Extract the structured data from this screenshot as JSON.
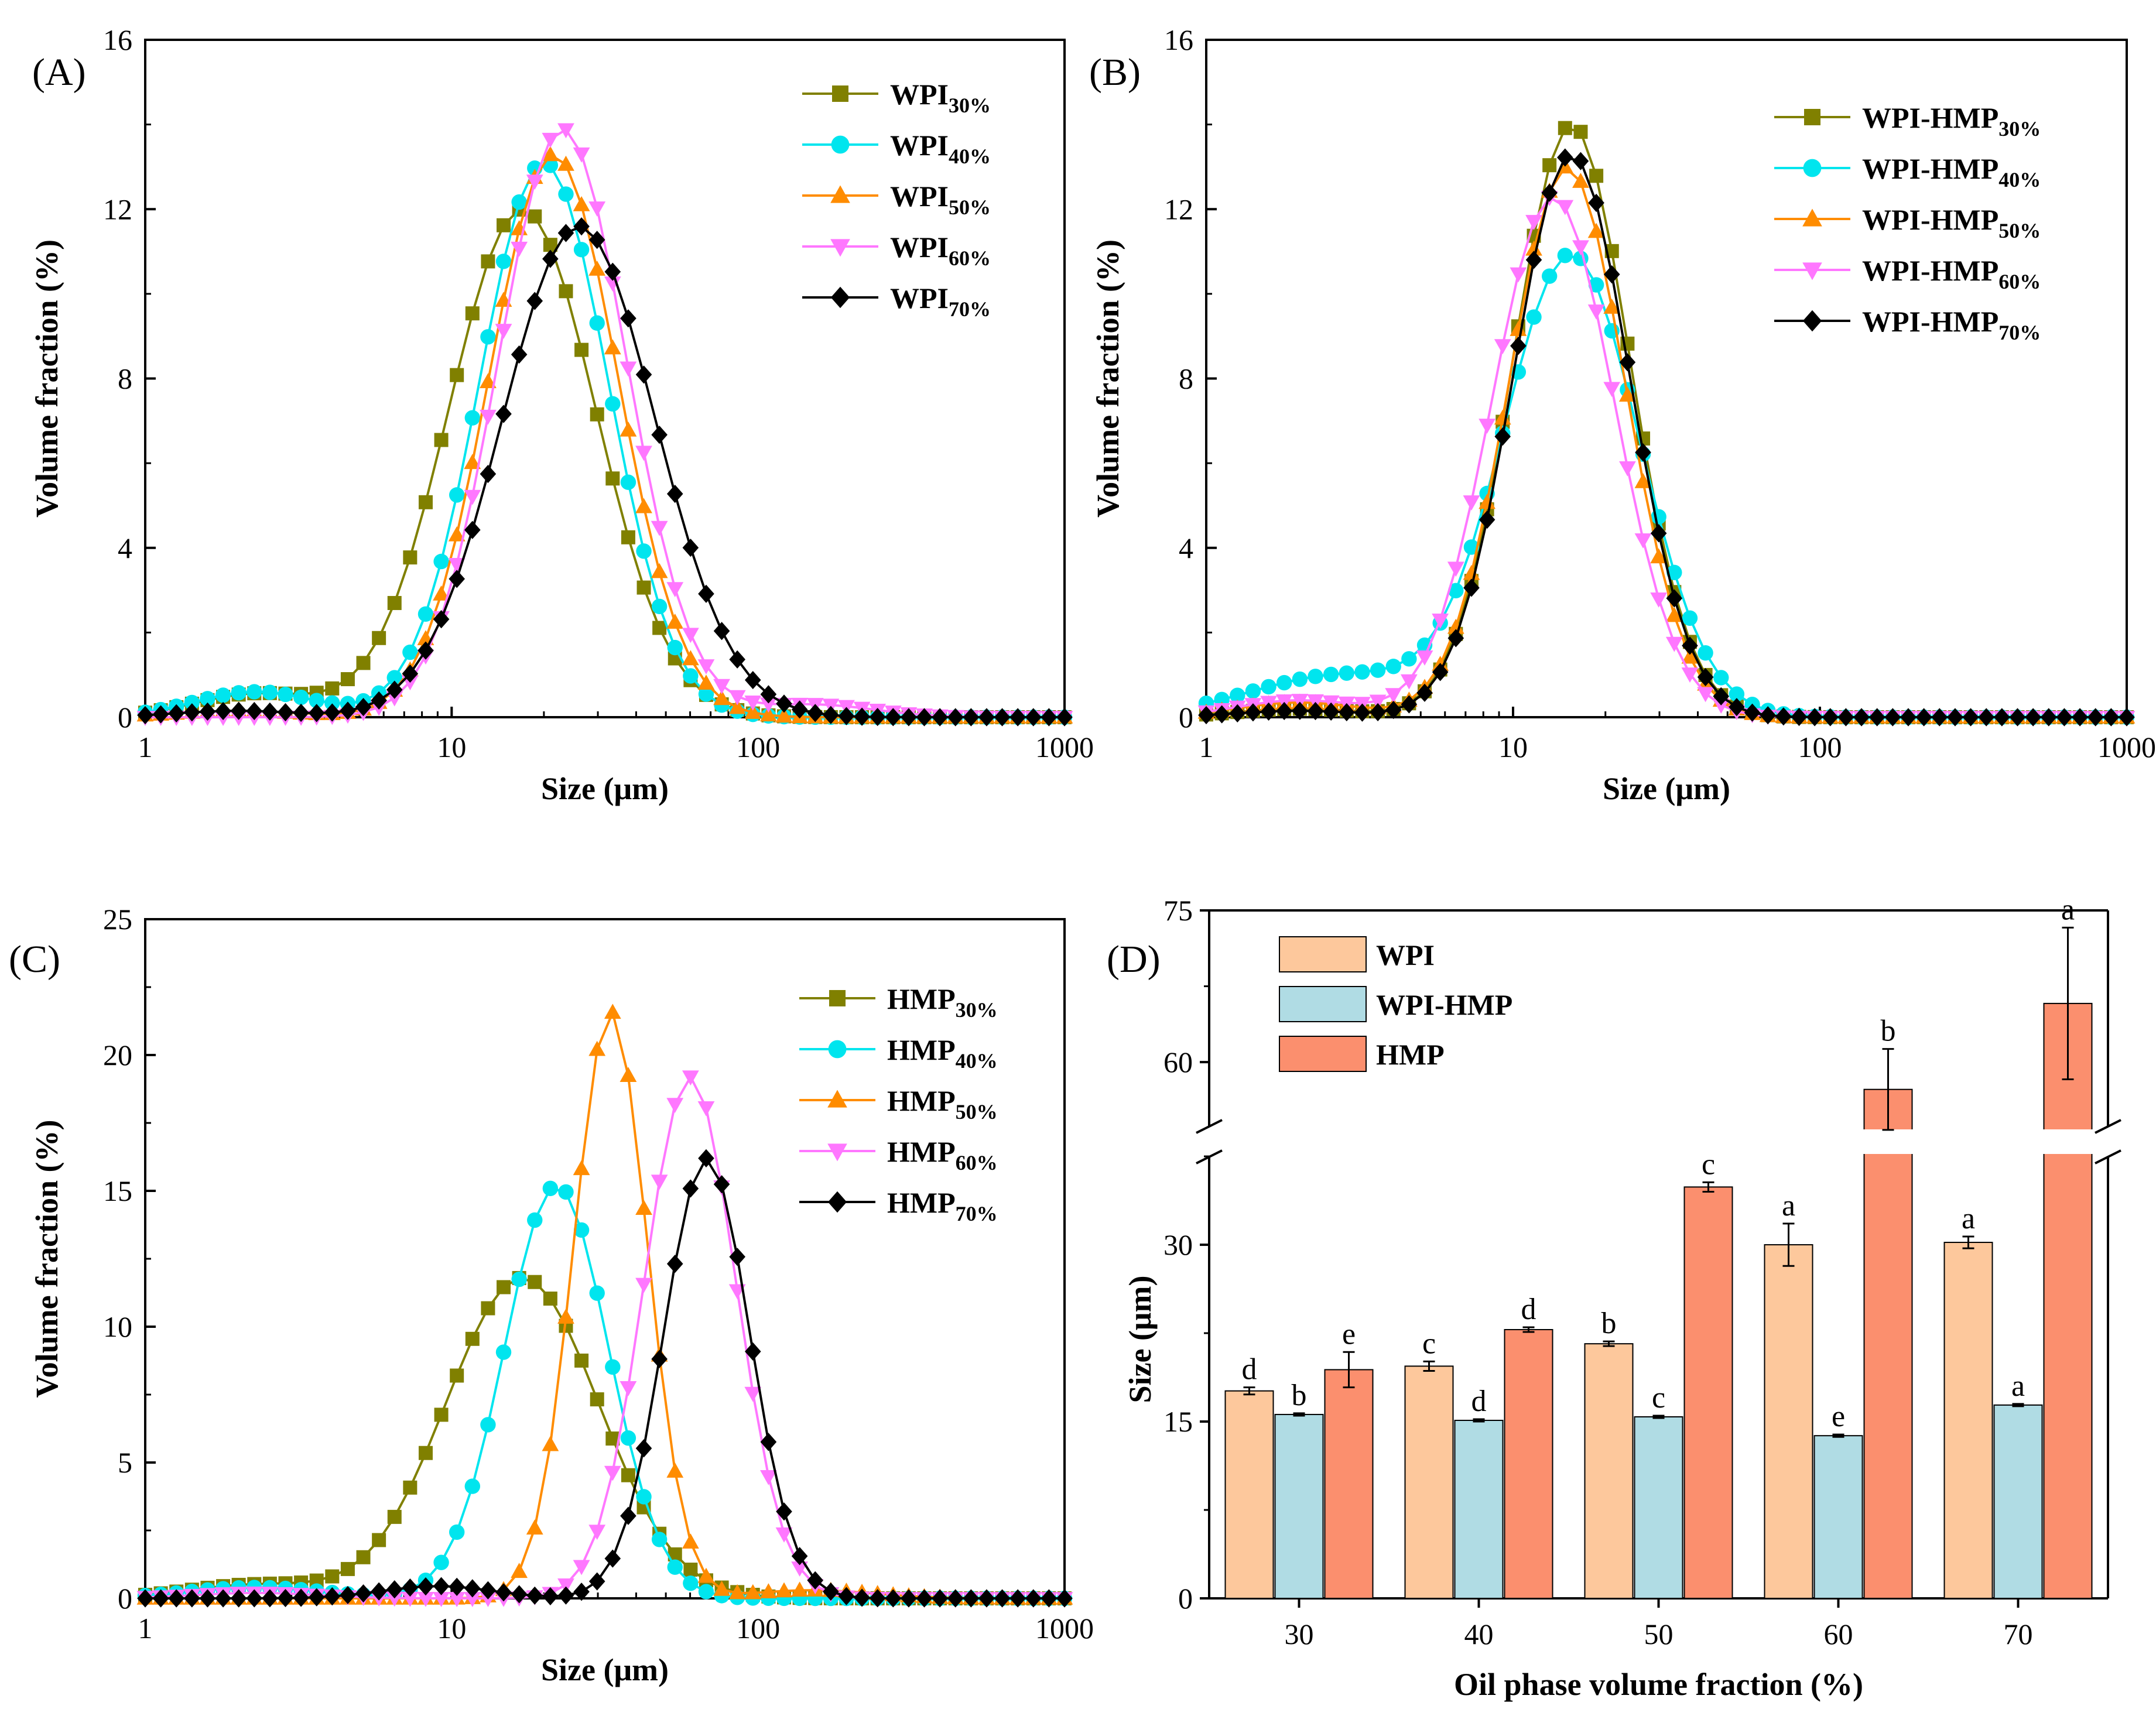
{
  "figure": {
    "panels": [
      "(A)",
      "(B)",
      "(C)",
      "(D)"
    ]
  },
  "chart_data": [
    {
      "type": "line",
      "panel": "(A)",
      "xlabel": "Size (μm)",
      "ylabel": "Volume fraction (%)",
      "xscale": "log",
      "xlim": [
        1,
        1000
      ],
      "ylim": [
        0,
        16
      ],
      "xticks": [
        "1",
        "10",
        "100",
        "1000"
      ],
      "yticks": [
        "0",
        "4",
        "8",
        "12",
        "16"
      ],
      "legend_position": "top-right",
      "series": [
        {
          "name": "WPI",
          "sub": "30%",
          "color": "#808000",
          "marker": "square",
          "center": 17.0,
          "width": 0.24,
          "peak": 12.0,
          "bump_center": 2.3,
          "bump_width": 0.2,
          "bump_peak": 0.55
        },
        {
          "name": "WPI",
          "sub": "40%",
          "color": "#00E5EE",
          "marker": "circle",
          "center": 20.0,
          "width": 0.21,
          "peak": 13.1,
          "bump_center": 2.3,
          "bump_width": 0.2,
          "bump_peak": 0.6
        },
        {
          "name": "WPI",
          "sub": "50%",
          "color": "#FF8C00",
          "marker": "triangle-up",
          "center": 21.5,
          "width": 0.21,
          "peak": 13.3,
          "bump_center": 2.0,
          "bump_width": 0.2,
          "bump_peak": 0.15
        },
        {
          "name": "WPI",
          "sub": "60%",
          "color": "#FF77FF",
          "marker": "triangle-down",
          "center": 23.0,
          "width": 0.21,
          "peak": 13.9,
          "bump_center": 150.0,
          "bump_width": 0.2,
          "bump_peak": 0.3
        },
        {
          "name": "WPI",
          "sub": "70%",
          "color": "#000000",
          "marker": "diamond",
          "center": 26.0,
          "width": 0.25,
          "peak": 11.6,
          "bump_center": 2.0,
          "bump_width": 0.2,
          "bump_peak": 0.15
        }
      ]
    },
    {
      "type": "line",
      "panel": "(B)",
      "xlabel": "Size (μm)",
      "ylabel": "Volume fraction (%)",
      "xscale": "log",
      "xlim": [
        1,
        1000
      ],
      "ylim": [
        0,
        16
      ],
      "xticks": [
        "1",
        "10",
        "100",
        "1000"
      ],
      "yticks": [
        "0",
        "4",
        "8",
        "12",
        "16"
      ],
      "legend_position": "top-right",
      "series": [
        {
          "name": "WPI-HMP",
          "sub": "30%",
          "color": "#808000",
          "marker": "square",
          "center": 15.5,
          "width": 0.19,
          "peak": 14.0,
          "bump_center": 2.0,
          "bump_width": 0.2,
          "bump_peak": 0.2
        },
        {
          "name": "WPI-HMP",
          "sub": "40%",
          "color": "#00E5EE",
          "marker": "circle",
          "center": 15.5,
          "width": 0.22,
          "peak": 10.9,
          "bump_center": 2.8,
          "bump_width": 0.3,
          "bump_peak": 1.0
        },
        {
          "name": "WPI-HMP",
          "sub": "50%",
          "color": "#FF8C00",
          "marker": "triangle-up",
          "center": 15.0,
          "width": 0.19,
          "peak": 13.0,
          "bump_center": 2.0,
          "bump_width": 0.2,
          "bump_peak": 0.35
        },
        {
          "name": "WPI-HMP",
          "sub": "60%",
          "color": "#FF77FF",
          "marker": "triangle-down",
          "center": 13.5,
          "width": 0.2,
          "peak": 12.3,
          "bump_center": 2.0,
          "bump_width": 0.2,
          "bump_peak": 0.4
        },
        {
          "name": "WPI-HMP",
          "sub": "70%",
          "color": "#000000",
          "marker": "diamond",
          "center": 15.5,
          "width": 0.19,
          "peak": 13.3,
          "bump_center": 2.0,
          "bump_width": 0.2,
          "bump_peak": 0.15
        }
      ]
    },
    {
      "type": "line",
      "panel": "(C)",
      "xlabel": "Size (μm)",
      "ylabel": "Volume fraction (%)",
      "xscale": "log",
      "xlim": [
        1,
        1000
      ],
      "ylim": [
        0,
        25
      ],
      "xticks": [
        "1",
        "10",
        "100",
        "1000"
      ],
      "yticks": [
        "0",
        "5",
        "10",
        "15",
        "20",
        "25"
      ],
      "legend_position": "top-right",
      "series": [
        {
          "name": "HMP",
          "sub": "30%",
          "color": "#808000",
          "marker": "square",
          "center": 17.0,
          "width": 0.25,
          "peak": 11.8,
          "bump_center": 2.3,
          "bump_width": 0.22,
          "bump_peak": 0.5
        },
        {
          "name": "HMP",
          "sub": "40%",
          "color": "#00E5EE",
          "marker": "circle",
          "center": 22.0,
          "width": 0.17,
          "peak": 15.2,
          "bump_center": 2.3,
          "bump_width": 0.22,
          "bump_peak": 0.4
        },
        {
          "name": "HMP",
          "sub": "50%",
          "color": "#FF8C00",
          "marker": "triangle-up",
          "center": 33.0,
          "width": 0.12,
          "peak": 21.6,
          "bump_center": 150.0,
          "bump_width": 0.2,
          "bump_peak": 0.3
        },
        {
          "name": "HMP",
          "sub": "60%",
          "color": "#FF77FF",
          "marker": "triangle-down",
          "center": 60.0,
          "width": 0.15,
          "peak": 19.2,
          "bump_center": 2.3,
          "bump_width": 0.2,
          "bump_peak": 0.2
        },
        {
          "name": "HMP",
          "sub": "70%",
          "color": "#000000",
          "marker": "diamond",
          "center": 68.0,
          "width": 0.14,
          "peak": 16.2,
          "bump_center": 9.0,
          "bump_width": 0.18,
          "bump_peak": 0.45
        }
      ]
    },
    {
      "type": "bar",
      "panel": "(D)",
      "xlabel": "Oil phase volume fraction (%)",
      "ylabel": "Size (μm)",
      "categories": [
        "30",
        "40",
        "50",
        "60",
        "70"
      ],
      "yticks": [
        "0",
        "15",
        "30",
        "60",
        "75"
      ],
      "y_axis_break": {
        "lower_range": [
          0,
          38
        ],
        "upper_range": [
          53,
          75
        ]
      },
      "legend_position": "top-left",
      "series": [
        {
          "name": "WPI",
          "color": "#FDC89C",
          "values": [
            17.6,
            19.7,
            21.6,
            30.0,
            30.2
          ],
          "errors": [
            0.3,
            0.4,
            0.2,
            1.8,
            0.5
          ],
          "letters": [
            "d",
            "c",
            "b",
            "a",
            "a"
          ]
        },
        {
          "name": "WPI-HMP",
          "color": "#B0DCE4",
          "values": [
            15.6,
            15.1,
            15.4,
            13.8,
            16.4
          ],
          "errors": [
            0.1,
            0.1,
            0.1,
            0.1,
            0.1
          ],
          "letters": [
            "b",
            "d",
            "c",
            "e",
            "a"
          ]
        },
        {
          "name": "HMP",
          "color": "#FB8F6E",
          "values": [
            19.4,
            22.8,
            34.9,
            57.3,
            65.8
          ],
          "errors": [
            1.5,
            0.2,
            0.4,
            4.0,
            7.5
          ],
          "letters": [
            "e",
            "d",
            "c",
            "b",
            "a"
          ]
        }
      ]
    }
  ]
}
